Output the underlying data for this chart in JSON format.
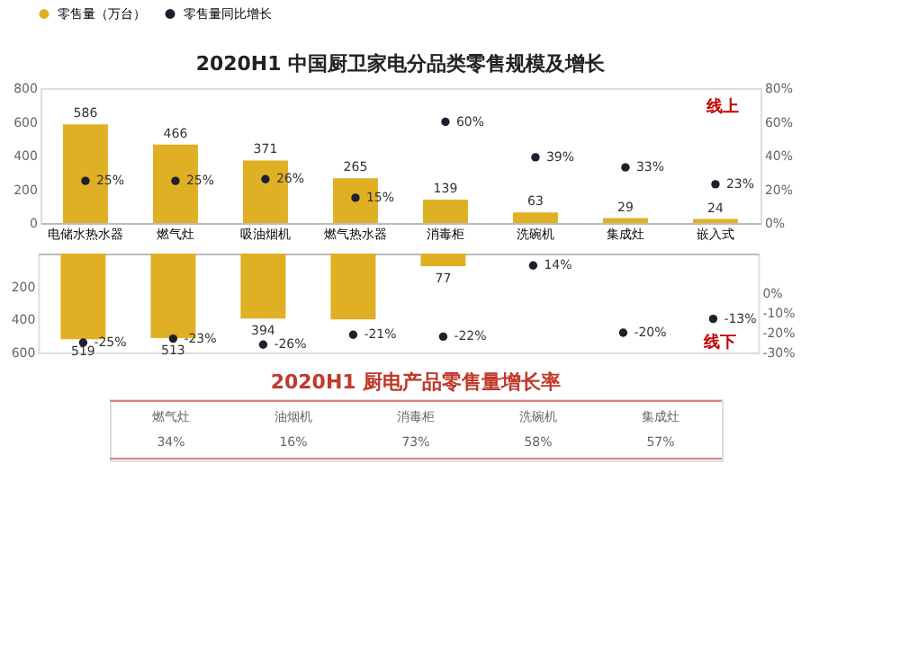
{
  "chart_data": [
    {
      "type": "bar",
      "title": "2020H1 中国厨卫家电分品类零售规模及增长",
      "categories": [
        "电储水热水器",
        "燃气灶",
        "吸油烟机",
        "燃气热水器",
        "消毒柜",
        "洗碗机",
        "集成灶",
        "嵌入式"
      ],
      "ylim": [
        0,
        800
      ],
      "yticks": [
        0,
        200,
        400,
        600,
        800
      ],
      "y2lim": [
        0,
        80
      ],
      "y2ticks": [
        {
          "value": 0,
          "label": "0%"
        },
        {
          "value": 20,
          "label": "20%"
        },
        {
          "value": 40,
          "label": "40%"
        },
        {
          "value": 60,
          "label": "60%"
        },
        {
          "value": 80,
          "label": "80%"
        }
      ],
      "legend": "top",
      "annotations": [
        "线上"
      ],
      "series": [
        {
          "name": "零售量（万台）",
          "type": "bar",
          "color": "#e0b024",
          "values": [
            586,
            466,
            371,
            265,
            139,
            63,
            29,
            24
          ],
          "value_labels": [
            "586",
            "466",
            "371",
            "265",
            "139",
            "63",
            "29",
            "24"
          ]
        },
        {
          "name": "零售量同比增长",
          "type": "scatter",
          "axis": "y2",
          "color": "#1f1f2e",
          "values": [
            25,
            25,
            26,
            15,
            60,
            39,
            33,
            23
          ],
          "value_labels": [
            "25%",
            "25%",
            "26%",
            "15%",
            "60%",
            "39%",
            "33%",
            "23%"
          ]
        }
      ]
    },
    {
      "type": "bar",
      "categories": [
        null,
        null,
        null,
        null,
        null,
        null,
        null,
        null
      ],
      "ylim": [
        600,
        0
      ],
      "yticks": [
        200,
        400,
        600
      ],
      "y2lim": [
        -30,
        20
      ],
      "y2ticks": [
        {
          "value": 0,
          "label": "0%"
        },
        {
          "value": -10,
          "label": "-10%"
        },
        {
          "value": -20,
          "label": "-20%"
        },
        {
          "value": -30,
          "label": "-30%"
        }
      ],
      "tick_labels": "y",
      "annotations": [
        "线下"
      ],
      "series": [
        {
          "type": "bar",
          "color": "#e0b024",
          "values": [
            519,
            513,
            394,
            400,
            77,
            null,
            null,
            null
          ],
          "value_labels": [
            "519",
            "513",
            "394",
            null,
            "77",
            null,
            null,
            null
          ]
        },
        {
          "type": "scatter",
          "axis": "y2",
          "color": "#1f1f2e",
          "values": [
            -25,
            -23,
            -26,
            -21,
            -22,
            14,
            -20,
            -13
          ],
          "value_labels": [
            "-25%",
            "-23%",
            "-26%",
            "-21%",
            "-22%",
            "14%",
            "-20%",
            "-13%"
          ]
        }
      ]
    },
    {
      "type": "other",
      "title": "2020H1 厨电产品零售量增长率",
      "categories": [
        "燃气灶",
        "油烟机",
        "消毒柜",
        "洗碗机",
        "集成灶"
      ],
      "values": [
        34,
        16,
        73,
        58,
        57
      ],
      "value_labels": [
        "34%",
        "16%",
        "73%",
        "58%",
        "57%"
      ]
    }
  ]
}
